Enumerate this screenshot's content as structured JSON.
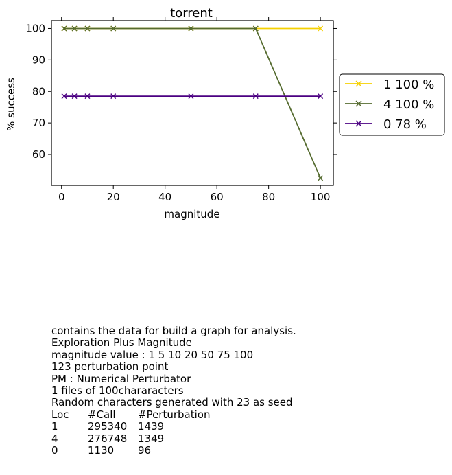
{
  "chart_data": {
    "type": "line",
    "title": "torrent",
    "xlabel": "magnitude",
    "ylabel": "% success",
    "xlim": [
      -3.9,
      105
    ],
    "ylim": [
      50.2,
      102.5
    ],
    "xticks": [
      0,
      20,
      40,
      60,
      80,
      100
    ],
    "yticks": [
      60,
      70,
      80,
      90,
      100
    ],
    "grid": false,
    "legend_position": "right-outside",
    "series": [
      {
        "name": "1 100 %",
        "color": "#f5d000",
        "x": [
          1,
          5,
          10,
          20,
          50,
          75,
          100
        ],
        "y": [
          100,
          100,
          100,
          100,
          100,
          100,
          100
        ]
      },
      {
        "name": "4 100 %",
        "color": "#556b2f",
        "x": [
          1,
          5,
          10,
          20,
          50,
          75,
          100
        ],
        "y": [
          100,
          100,
          100,
          100,
          100,
          100,
          52.5
        ]
      },
      {
        "name": "0 78 %",
        "color": "#4b0082",
        "x": [
          1,
          5,
          10,
          20,
          50,
          75,
          100
        ],
        "y": [
          78.5,
          78.5,
          78.5,
          78.5,
          78.5,
          78.5,
          78.5
        ]
      }
    ]
  },
  "notes": {
    "lines": [
      "contains the data for build a graph for analysis.",
      "Exploration Plus Magnitude",
      "magnitude value : 1 5 10 20 50 75 100",
      "123 perturbation point",
      "PM : Numerical Perturbator",
      "1 files of 100chararacters",
      "Random characters generated with 23 as seed"
    ],
    "table_header": [
      "Loc",
      "#Call",
      "#Perturbation"
    ],
    "table_rows": [
      [
        "1",
        "295340",
        "1439"
      ],
      [
        "4",
        "276748",
        "1349"
      ],
      [
        "0",
        "1130",
        "96"
      ]
    ]
  }
}
